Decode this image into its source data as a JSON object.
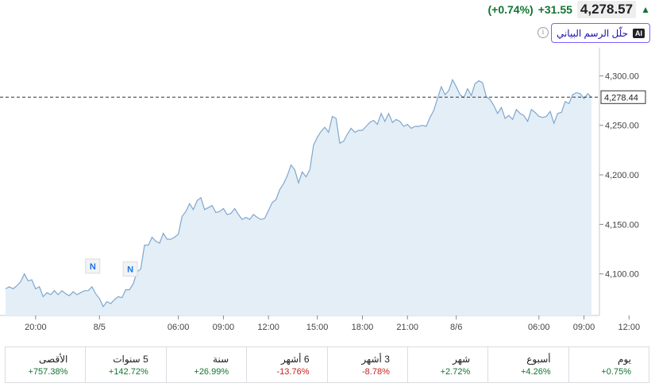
{
  "quote": {
    "price": "4,278.57",
    "change": "+31.55",
    "change_pct": "(+0.74%)",
    "arrow_icon": "arrow-up-icon"
  },
  "ai_button": {
    "badge": "AI",
    "label": "حلّل الرسم البياني"
  },
  "info_icon_glyph": "i",
  "chart_data": {
    "type": "area",
    "series": [
      {
        "values": [
          4085,
          4087,
          4085,
          4088,
          4092,
          4100,
          4093,
          4094,
          4085,
          4087,
          4077,
          4081,
          4079,
          4083,
          4079,
          4083,
          4080,
          4078,
          4082,
          4079,
          4081,
          4083,
          4083,
          4087,
          4080,
          4075,
          4067,
          4072,
          4070,
          4074,
          4077,
          4076,
          4084,
          4084,
          4090,
          4102,
          4105,
          4129,
          4129,
          4137,
          4133,
          4131,
          4141,
          4135,
          4135,
          4137,
          4140,
          4158,
          4163,
          4171,
          4165,
          4174,
          4177,
          4165,
          4167,
          4169,
          4162,
          4163,
          4166,
          4160,
          4161,
          4166,
          4160,
          4155,
          4157,
          4155,
          4160,
          4157,
          4155,
          4156,
          4164,
          4172,
          4175,
          4185,
          4191,
          4199,
          4210,
          4205,
          4192,
          4203,
          4198,
          4205,
          4230,
          4238,
          4244,
          4248,
          4243,
          4259,
          4257,
          4232,
          4234,
          4241,
          4247,
          4243,
          4245,
          4245,
          4249,
          4253,
          4255,
          4251,
          4262,
          4254,
          4262,
          4253,
          4256,
          4254,
          4249,
          4251,
          4247,
          4249,
          4249,
          4250,
          4249,
          4258,
          4265,
          4277,
          4289,
          4281,
          4285,
          4296,
          4289,
          4281,
          4278,
          4287,
          4280,
          4292,
          4295,
          4293,
          4279,
          4276,
          4270,
          4262,
          4268,
          4257,
          4260,
          4256,
          4266,
          4262,
          4260,
          4254,
          4266,
          4263,
          4259,
          4258,
          4259,
          4264,
          4252,
          4262,
          4263,
          4274,
          4272,
          4281,
          4283,
          4282,
          4277,
          4282,
          4278.44
        ]
      }
    ],
    "last_value_label": "4,278.44",
    "x_ticks": [
      {
        "label": "20:00",
        "index": 8
      },
      {
        "label": "8/5",
        "index": 25
      },
      {
        "label": "06:00",
        "index": 46
      },
      {
        "label": "09:00",
        "index": 58
      },
      {
        "label": "12:00",
        "index": 70
      },
      {
        "label": "15:00",
        "index": 83
      },
      {
        "label": "18:00",
        "index": 95
      },
      {
        "label": "21:00",
        "index": 107
      },
      {
        "label": "8/6",
        "index": 120
      },
      {
        "label": "06:00",
        "index": 142
      },
      {
        "label": "09:00",
        "index": 154
      },
      {
        "label": "12:00",
        "index": 166
      }
    ],
    "y_ticks": [
      {
        "label": "4,100.00",
        "value": 4100
      },
      {
        "label": "4,150.00",
        "value": 4150
      },
      {
        "label": "4,200.00",
        "value": 4200
      },
      {
        "label": "4,250.00",
        "value": 4250
      },
      {
        "label": "4,300.00",
        "value": 4300
      }
    ],
    "ylim": [
      4058,
      4322
    ],
    "markers": [
      {
        "label": "N",
        "index": 23
      },
      {
        "label": "N",
        "index": 33
      }
    ],
    "colors": {
      "line": "#7fa7cf",
      "fill": "#e4eef6",
      "axis": "#c8c8c8",
      "marker": "#1a73e8"
    }
  },
  "periods": [
    {
      "label": "يوم",
      "change": "+0.75%",
      "sign": "pos"
    },
    {
      "label": "أسبوع",
      "change": "+4.26%",
      "sign": "pos"
    },
    {
      "label": "شهر",
      "change": "+2.72%",
      "sign": "pos"
    },
    {
      "label": "3 أشهر",
      "change": "-8.78%",
      "sign": "neg"
    },
    {
      "label": "6 أشهر",
      "change": "-13.76%",
      "sign": "neg"
    },
    {
      "label": "سنة",
      "change": "+26.99%",
      "sign": "pos"
    },
    {
      "label": "5 سنوات",
      "change": "+142.72%",
      "sign": "pos"
    },
    {
      "label": "الأقصى",
      "change": "+757.38%",
      "sign": "pos"
    }
  ]
}
